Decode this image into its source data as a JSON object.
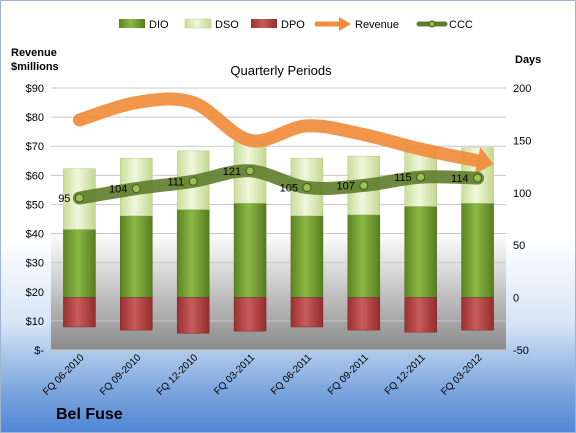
{
  "company": "Bel Fuse",
  "chart_data": {
    "type": "bar",
    "title": "Quarterly Periods",
    "left_axis_title_line1": "Revenue",
    "left_axis_title_line2": "$millions",
    "right_axis_title": "Days",
    "categories": [
      "FQ 06-2010",
      "FQ 09-2010",
      "FQ 12-2010",
      "FQ 03-2011",
      "FQ 06-2011",
      "FQ 09-2011",
      "FQ 12-2011",
      "FQ 03-2012"
    ],
    "left_ticks": [
      "$-",
      "$10",
      "$20",
      "$30",
      "$40",
      "$50",
      "$60",
      "$70",
      "$80",
      "$90"
    ],
    "right_ticks": [
      "-50",
      "0",
      "50",
      "100",
      "150",
      "200"
    ],
    "left_axis_range": [
      0,
      90
    ],
    "right_axis_range": [
      -50,
      200
    ],
    "series": [
      {
        "name": "DIO",
        "axis": "days",
        "values": [
          65,
          78,
          84,
          90,
          78,
          79,
          87,
          90
        ],
        "color": "#6f9a2a"
      },
      {
        "name": "DSO",
        "axis": "days",
        "values": [
          58,
          55,
          56,
          59,
          55,
          56,
          57,
          53
        ],
        "color": "#e3efc1"
      },
      {
        "name": "DPO",
        "axis": "days",
        "values": [
          -28,
          -31,
          -34,
          -32,
          -28,
          -31,
          -33,
          -31
        ],
        "color": "#b84a4a"
      },
      {
        "name": "Revenue",
        "axis": "revenue",
        "values": [
          79,
          85,
          85,
          72,
          77,
          74,
          69,
          65
        ],
        "color": "#f08c3c"
      },
      {
        "name": "CCC",
        "axis": "days",
        "values": [
          95,
          104,
          111,
          121,
          105,
          107,
          115,
          114
        ],
        "color": "#5e7d2b"
      }
    ],
    "ccc_labels": [
      "95",
      "104",
      "111",
      "121",
      "105",
      "107",
      "115",
      "114"
    ],
    "grid": true,
    "legend_position": "top"
  }
}
